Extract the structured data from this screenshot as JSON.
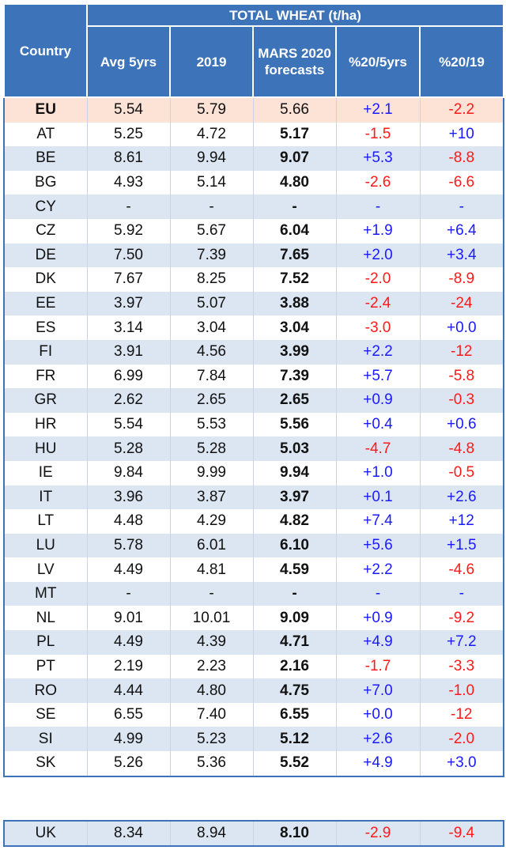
{
  "chart_data": {
    "type": "table",
    "title": "TOTAL WHEAT (t/ha)",
    "columns": [
      "Country",
      "Avg 5yrs",
      "2019",
      "MARS 2020 forecasts",
      "%20/5yrs",
      "%20/19"
    ],
    "rows": [
      {
        "country": "EU",
        "avg5": "5.54",
        "y2019": "5.79",
        "fc2020": "5.66",
        "p5": "+2.1",
        "p19": "-2.2"
      },
      {
        "country": "AT",
        "avg5": "5.25",
        "y2019": "4.72",
        "fc2020": "5.17",
        "p5": "-1.5",
        "p19": "+10"
      },
      {
        "country": "BE",
        "avg5": "8.61",
        "y2019": "9.94",
        "fc2020": "9.07",
        "p5": "+5.3",
        "p19": "-8.8"
      },
      {
        "country": "BG",
        "avg5": "4.93",
        "y2019": "5.14",
        "fc2020": "4.80",
        "p5": "-2.6",
        "p19": "-6.6"
      },
      {
        "country": "CY",
        "avg5": "-",
        "y2019": "-",
        "fc2020": "-",
        "p5": "-",
        "p19": "-"
      },
      {
        "country": "CZ",
        "avg5": "5.92",
        "y2019": "5.67",
        "fc2020": "6.04",
        "p5": "+1.9",
        "p19": "+6.4"
      },
      {
        "country": "DE",
        "avg5": "7.50",
        "y2019": "7.39",
        "fc2020": "7.65",
        "p5": "+2.0",
        "p19": "+3.4"
      },
      {
        "country": "DK",
        "avg5": "7.67",
        "y2019": "8.25",
        "fc2020": "7.52",
        "p5": "-2.0",
        "p19": "-8.9"
      },
      {
        "country": "EE",
        "avg5": "3.97",
        "y2019": "5.07",
        "fc2020": "3.88",
        "p5": "-2.4",
        "p19": "-24"
      },
      {
        "country": "ES",
        "avg5": "3.14",
        "y2019": "3.04",
        "fc2020": "3.04",
        "p5": "-3.0",
        "p19": "+0.0"
      },
      {
        "country": "FI",
        "avg5": "3.91",
        "y2019": "4.56",
        "fc2020": "3.99",
        "p5": "+2.2",
        "p19": "-12"
      },
      {
        "country": "FR",
        "avg5": "6.99",
        "y2019": "7.84",
        "fc2020": "7.39",
        "p5": "+5.7",
        "p19": "-5.8"
      },
      {
        "country": "GR",
        "avg5": "2.62",
        "y2019": "2.65",
        "fc2020": "2.65",
        "p5": "+0.9",
        "p19": "-0.3"
      },
      {
        "country": "HR",
        "avg5": "5.54",
        "y2019": "5.53",
        "fc2020": "5.56",
        "p5": "+0.4",
        "p19": "+0.6"
      },
      {
        "country": "HU",
        "avg5": "5.28",
        "y2019": "5.28",
        "fc2020": "5.03",
        "p5": "-4.7",
        "p19": "-4.8"
      },
      {
        "country": "IE",
        "avg5": "9.84",
        "y2019": "9.99",
        "fc2020": "9.94",
        "p5": "+1.0",
        "p19": "-0.5"
      },
      {
        "country": "IT",
        "avg5": "3.96",
        "y2019": "3.87",
        "fc2020": "3.97",
        "p5": "+0.1",
        "p19": "+2.6"
      },
      {
        "country": "LT",
        "avg5": "4.48",
        "y2019": "4.29",
        "fc2020": "4.82",
        "p5": "+7.4",
        "p19": "+12"
      },
      {
        "country": "LU",
        "avg5": "5.78",
        "y2019": "6.01",
        "fc2020": "6.10",
        "p5": "+5.6",
        "p19": "+1.5"
      },
      {
        "country": "LV",
        "avg5": "4.49",
        "y2019": "4.81",
        "fc2020": "4.59",
        "p5": "+2.2",
        "p19": "-4.6"
      },
      {
        "country": "MT",
        "avg5": "-",
        "y2019": "-",
        "fc2020": "-",
        "p5": "-",
        "p19": "-"
      },
      {
        "country": "NL",
        "avg5": "9.01",
        "y2019": "10.01",
        "fc2020": "9.09",
        "p5": "+0.9",
        "p19": "-9.2"
      },
      {
        "country": "PL",
        "avg5": "4.49",
        "y2019": "4.39",
        "fc2020": "4.71",
        "p5": "+4.9",
        "p19": "+7.2"
      },
      {
        "country": "PT",
        "avg5": "2.19",
        "y2019": "2.23",
        "fc2020": "2.16",
        "p5": "-1.7",
        "p19": "-3.3"
      },
      {
        "country": "RO",
        "avg5": "4.44",
        "y2019": "4.80",
        "fc2020": "4.75",
        "p5": "+7.0",
        "p19": "-1.0"
      },
      {
        "country": "SE",
        "avg5": "6.55",
        "y2019": "7.40",
        "fc2020": "6.55",
        "p5": "+0.0",
        "p19": "-12"
      },
      {
        "country": "SI",
        "avg5": "4.99",
        "y2019": "5.23",
        "fc2020": "5.12",
        "p5": "+2.6",
        "p19": "-2.0"
      },
      {
        "country": "SK",
        "avg5": "5.26",
        "y2019": "5.36",
        "fc2020": "5.52",
        "p5": "+4.9",
        "p19": "+3.0"
      }
    ],
    "separate_row": {
      "country": "UK",
      "avg5": "8.34",
      "y2019": "8.94",
      "fc2020": "8.10",
      "p5": "-2.9",
      "p19": "-9.4"
    }
  },
  "header": {
    "group_title": "TOTAL WHEAT (t/ha)",
    "country": "Country",
    "avg5": "Avg 5yrs",
    "y2019": "2019",
    "fc_line1": "MARS 2020",
    "fc_line2": "forecasts",
    "p5": "%20/5yrs",
    "p19": "%20/19"
  },
  "colors": {
    "header_bg": "#3d73b9",
    "row_alt": "#dce6f2",
    "eu_row": "#fde2d6",
    "positive": "#1a1aff",
    "negative": "#ff1a1a"
  }
}
